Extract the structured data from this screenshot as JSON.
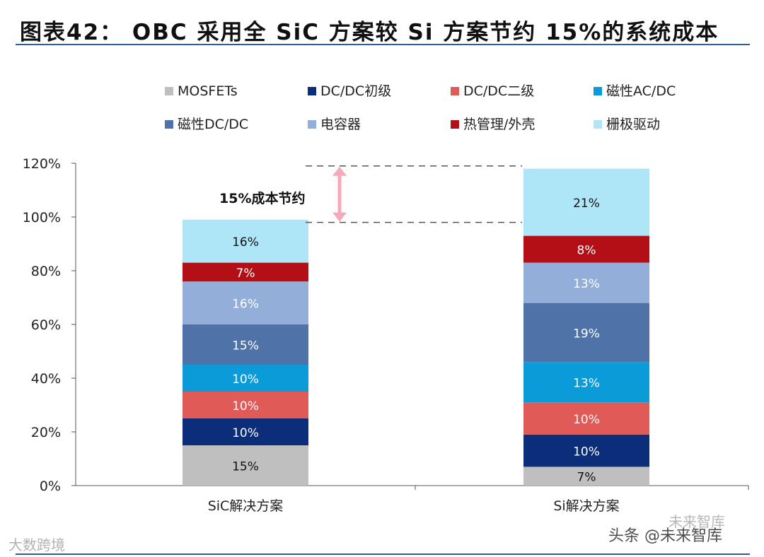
{
  "header": {
    "title": "图表42： OBC 采用全 SiC 方案较 Si 方案节约 15%的系统成本"
  },
  "chart_data": {
    "type": "bar",
    "stacked": true,
    "categories": [
      "SiC解决方案",
      "Si解决方案"
    ],
    "ylim": [
      0,
      120
    ],
    "yticks": [
      "0%",
      "20%",
      "40%",
      "60%",
      "80%",
      "100%",
      "120%"
    ],
    "grid": false,
    "legend_position": "top",
    "series": [
      {
        "name": "MOSFETs",
        "color": "#bfbfbf",
        "text_color": "#111111",
        "values": [
          15,
          7
        ],
        "labels": [
          "15%",
          "7%"
        ]
      },
      {
        "name": "DC/DC初级",
        "color": "#0b2d7a",
        "text_color": "#ffffff",
        "values": [
          10,
          12
        ],
        "labels": [
          "10%",
          "10%"
        ]
      },
      {
        "name": "DC/DC二级",
        "color": "#e05a57",
        "text_color": "#ffffff",
        "values": [
          10,
          12
        ],
        "labels": [
          "10%",
          "10%"
        ]
      },
      {
        "name": "磁性AC/DC",
        "color": "#0a9bd8",
        "text_color": "#ffffff",
        "values": [
          10,
          15
        ],
        "labels": [
          "10%",
          "13%"
        ]
      },
      {
        "name": "磁性DC/DC",
        "color": "#4f73a8",
        "text_color": "#ffffff",
        "values": [
          15,
          22
        ],
        "labels": [
          "15%",
          "19%"
        ]
      },
      {
        "name": "电容器",
        "color": "#93aed8",
        "text_color": "#ffffff",
        "values": [
          16,
          15
        ],
        "labels": [
          "16%",
          "13%"
        ]
      },
      {
        "name": "热管理/外壳",
        "color": "#b40f16",
        "text_color": "#ffffff",
        "values": [
          7,
          10
        ],
        "labels": [
          "7%",
          "8%"
        ]
      },
      {
        "name": "栅极驱动",
        "color": "#aee6f7",
        "text_color": "#111111",
        "values": [
          16,
          25
        ],
        "labels": [
          "16%",
          "21%"
        ]
      }
    ],
    "annotation": {
      "text": "15%成本节约",
      "from": 98,
      "to": 119,
      "color": "#f4aab8"
    }
  },
  "watermarks": {
    "left": "大数跨境",
    "right_top": "未来智库",
    "right": "头条 @未来智库"
  }
}
